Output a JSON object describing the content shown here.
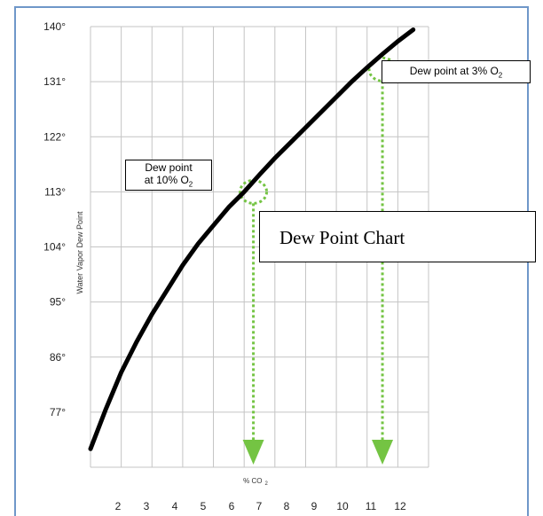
{
  "chart_data": {
    "type": "line",
    "title": "Dew Point Chart",
    "xlabel": "% CO",
    "xlabel_sub": "2",
    "ylabel": "Water Vapor Dew Point",
    "x_ticks": [
      "2",
      "3",
      "4",
      "5",
      "6",
      "7",
      "8",
      "9",
      "10",
      "11",
      "12"
    ],
    "y_ticks": [
      "140°",
      "131°",
      "122°",
      "113°",
      "104°",
      "95°",
      "86°",
      "77°"
    ],
    "xlim": [
      1,
      12
    ],
    "ylim": [
      68,
      140
    ],
    "grid": true,
    "series": [
      {
        "x": [
          1.0,
          1.5,
          2.0,
          2.5,
          3.0,
          3.5,
          4.0,
          4.5,
          5.0,
          5.5,
          6.0,
          6.5,
          7.0,
          7.5,
          8.0,
          8.5,
          9.0,
          9.5,
          10.0,
          10.5,
          11.0,
          11.5
        ],
        "y": [
          71,
          77.5,
          83.5,
          88.5,
          93,
          97,
          101,
          104.5,
          107.5,
          110.5,
          113,
          115.8,
          118.5,
          121,
          123.5,
          126,
          128.5,
          131,
          133.3,
          135.5,
          137.6,
          139.5
        ]
      }
    ],
    "annotations": [
      {
        "text_line1": "Dew point",
        "text_line2": "at 10% O",
        "sub": "2",
        "x": 6.3,
        "y": 113
      },
      {
        "text": "Dew point at 3% O",
        "sub": "2",
        "x": 10.5,
        "y": 133
      }
    ]
  }
}
